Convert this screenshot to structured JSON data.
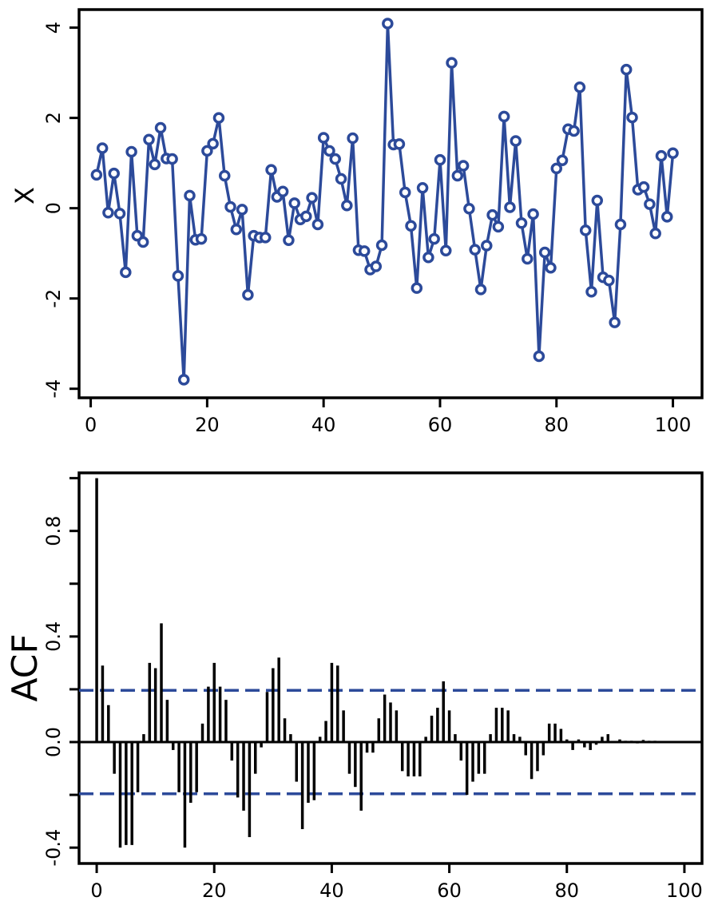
{
  "colors": {
    "series": "#2c4a9a",
    "bars": "#000000",
    "ci_line": "#2c4a9a",
    "axes": "#000000"
  },
  "chart_data": [
    {
      "type": "line",
      "ylabel": "X",
      "xlabel": "",
      "xlim": [
        -2,
        105
      ],
      "ylim": [
        -4.2,
        4.4
      ],
      "xticks": [
        0,
        20,
        40,
        60,
        80,
        100
      ],
      "yticks": [
        -4,
        -2,
        0,
        2,
        4
      ],
      "xtick_labels": [
        "0",
        "20",
        "40",
        "60",
        "80",
        "100"
      ],
      "ytick_labels": [
        "-4",
        "-2",
        "0",
        "2",
        "4"
      ],
      "marker": "open-circle",
      "grid": false,
      "x": [
        1,
        2,
        3,
        4,
        5,
        6,
        7,
        8,
        9,
        10,
        11,
        12,
        13,
        14,
        15,
        16,
        17,
        18,
        19,
        20,
        21,
        22,
        23,
        24,
        25,
        26,
        27,
        28,
        29,
        30,
        31,
        32,
        33,
        34,
        35,
        36,
        37,
        38,
        39,
        40,
        41,
        42,
        43,
        44,
        45,
        46,
        47,
        48,
        49,
        50,
        51,
        52,
        53,
        54,
        55,
        56,
        57,
        58,
        59,
        60,
        61,
        62,
        63,
        64,
        65,
        66,
        67,
        68,
        69,
        70,
        71,
        72,
        73,
        74,
        75,
        76,
        77,
        78,
        79,
        80,
        81,
        82,
        83,
        84,
        85,
        86,
        87,
        88,
        89,
        90,
        91,
        92,
        93,
        94,
        95,
        96,
        97,
        98,
        99,
        100
      ],
      "y": [
        0.74,
        1.33,
        -0.1,
        0.77,
        -0.12,
        -1.42,
        1.25,
        -0.61,
        -0.75,
        1.52,
        0.97,
        1.78,
        1.1,
        1.09,
        -1.5,
        -3.8,
        0.28,
        -0.7,
        -0.68,
        1.27,
        1.43,
        2.0,
        0.72,
        0.03,
        -0.47,
        -0.03,
        -1.92,
        -0.61,
        -0.65,
        -0.65,
        0.85,
        0.25,
        0.37,
        -0.71,
        0.11,
        -0.25,
        -0.18,
        0.23,
        -0.36,
        1.56,
        1.27,
        1.09,
        0.65,
        0.06,
        1.55,
        -0.93,
        -0.95,
        -1.36,
        -1.29,
        -0.82,
        4.09,
        1.41,
        1.42,
        0.35,
        -0.39,
        -1.77,
        0.45,
        -1.09,
        -0.68,
        1.07,
        -0.94,
        3.22,
        0.72,
        0.94,
        -0.01,
        -0.92,
        -1.8,
        -0.83,
        -0.15,
        -0.41,
        2.03,
        0.02,
        1.49,
        -0.33,
        -1.12,
        -0.13,
        -3.28,
        -0.98,
        -1.32,
        0.88,
        1.06,
        1.75,
        1.71,
        2.68,
        -0.49,
        -1.85,
        0.17,
        -1.53,
        -1.6,
        -2.53,
        -0.36,
        3.07,
        2.01,
        0.41,
        0.47,
        0.09,
        -0.56,
        1.16,
        -0.19,
        1.22
      ]
    },
    {
      "type": "bar",
      "ylabel": "ACF",
      "xlabel": "",
      "xlim": [
        -3,
        103
      ],
      "ylim": [
        -0.46,
        1.02
      ],
      "xticks": [
        0,
        20,
        40,
        60,
        80,
        100
      ],
      "yticks": [
        -0.4,
        0.0,
        0.4,
        0.8
      ],
      "minor_yticks": [
        -0.2,
        0.2,
        0.6,
        1.0
      ],
      "xtick_labels": [
        "0",
        "20",
        "40",
        "60",
        "80",
        "100"
      ],
      "ytick_labels": [
        "-0.4",
        "0.0",
        "0.4",
        "0.8"
      ],
      "ci_bounds": [
        0.196,
        -0.196
      ],
      "grid": false,
      "lags": [
        0,
        1,
        2,
        3,
        4,
        5,
        6,
        7,
        8,
        9,
        10,
        11,
        12,
        13,
        14,
        15,
        16,
        17,
        18,
        19,
        20,
        21,
        22,
        23,
        24,
        25,
        26,
        27,
        28,
        29,
        30,
        31,
        32,
        33,
        34,
        35,
        36,
        37,
        38,
        39,
        40,
        41,
        42,
        43,
        44,
        45,
        46,
        47,
        48,
        49,
        50,
        51,
        52,
        53,
        54,
        55,
        56,
        57,
        58,
        59,
        60,
        61,
        62,
        63,
        64,
        65,
        66,
        67,
        68,
        69,
        70,
        71,
        72,
        73,
        74,
        75,
        76,
        77,
        78,
        79,
        80,
        81,
        82,
        83,
        84,
        85,
        86,
        87,
        88,
        89,
        90,
        91,
        92,
        93,
        94,
        95,
        96,
        97,
        98,
        99
      ],
      "values": [
        1.0,
        0.29,
        0.14,
        -0.12,
        -0.4,
        -0.39,
        -0.39,
        -0.19,
        0.03,
        0.3,
        0.28,
        0.45,
        0.16,
        -0.03,
        -0.19,
        -0.4,
        -0.23,
        -0.19,
        0.07,
        0.21,
        0.3,
        0.21,
        0.16,
        -0.07,
        -0.21,
        -0.26,
        -0.36,
        -0.12,
        -0.02,
        0.19,
        0.28,
        0.32,
        0.09,
        0.03,
        -0.15,
        -0.33,
        -0.23,
        -0.22,
        0.02,
        0.08,
        0.3,
        0.29,
        0.12,
        -0.12,
        -0.17,
        -0.26,
        -0.04,
        -0.04,
        0.09,
        0.18,
        0.15,
        0.12,
        -0.11,
        -0.13,
        -0.13,
        -0.13,
        0.02,
        0.1,
        0.13,
        0.23,
        0.12,
        0.03,
        -0.07,
        -0.2,
        -0.15,
        -0.12,
        -0.12,
        0.03,
        0.13,
        0.13,
        0.12,
        0.03,
        0.02,
        -0.05,
        -0.14,
        -0.11,
        -0.05,
        0.07,
        0.07,
        0.05,
        0.01,
        -0.03,
        0.01,
        -0.02,
        -0.03,
        -0.01,
        0.02,
        0.03,
        0.0,
        0.01,
        0.005,
        0.005,
        -0.005,
        0.008,
        0.005,
        0.005,
        0.0,
        0.004,
        0.004,
        0.002
      ]
    }
  ]
}
